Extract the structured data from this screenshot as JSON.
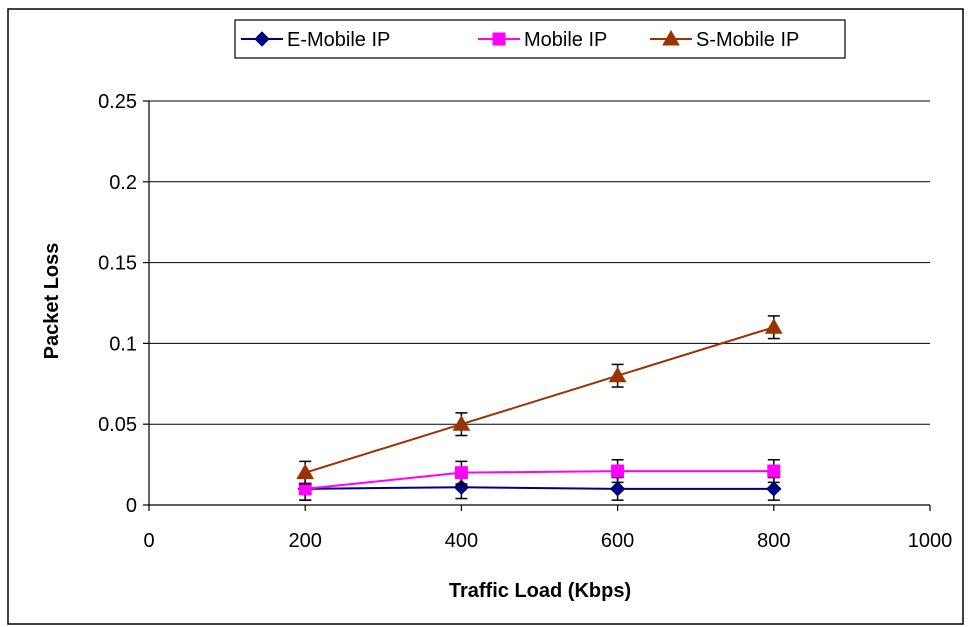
{
  "chart_data": {
    "type": "line",
    "title": "",
    "xlabel": "Traffic Load (Kbps)",
    "ylabel": "Packet Loss",
    "xlim": [
      0,
      1000
    ],
    "ylim": [
      0,
      0.25
    ],
    "xticks": [
      0,
      200,
      400,
      600,
      800,
      1000
    ],
    "yticks": [
      0,
      0.05,
      0.1,
      0.15,
      0.2,
      0.25
    ],
    "x_tick_labels": [
      "0",
      "200",
      "400",
      "600",
      "800",
      "1000"
    ],
    "y_tick_labels": [
      "0",
      "0.05",
      "0.1",
      "0.15",
      "0.2",
      "0.25"
    ],
    "grid": "horizontal",
    "legend_position": "top",
    "series": [
      {
        "name": "E-Mobile IP",
        "color": "#000080",
        "marker": "diamond",
        "x": [
          200,
          400,
          600,
          800
        ],
        "values": [
          0.01,
          0.011,
          0.01,
          0.01
        ],
        "error": [
          0.007,
          0.007,
          0.007,
          0.007
        ]
      },
      {
        "name": "Mobile IP",
        "color": "#ff00ff",
        "marker": "square",
        "x": [
          200,
          400,
          600,
          800
        ],
        "values": [
          0.01,
          0.02,
          0.021,
          0.021
        ],
        "error": [
          0.007,
          0.007,
          0.007,
          0.007
        ]
      },
      {
        "name": "S-Mobile IP",
        "color": "#993300",
        "marker": "triangle",
        "x": [
          200,
          400,
          600,
          800
        ],
        "values": [
          0.02,
          0.05,
          0.08,
          0.11
        ],
        "error": [
          0.007,
          0.007,
          0.007,
          0.007
        ]
      }
    ]
  }
}
